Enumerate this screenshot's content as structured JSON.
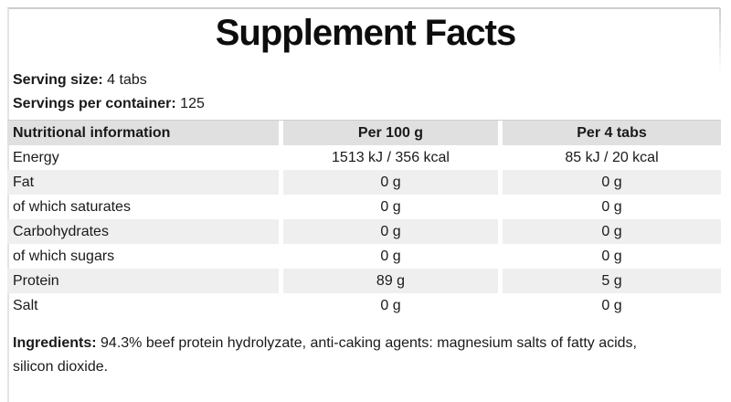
{
  "label": {
    "title": "Supplement Facts",
    "serving_size_label": "Serving size:",
    "serving_size_value": "4 tabs",
    "servings_per_container_label": "Servings per container:",
    "servings_per_container_value": "125"
  },
  "table": {
    "headers": [
      "Nutritional information",
      "Per 100 g",
      "Per 4 tabs"
    ],
    "rows": [
      {
        "name": "Energy",
        "per_100g": "1513 kJ / 356 kcal",
        "per_4tabs": "85 kJ / 20 kcal"
      },
      {
        "name": "Fat",
        "per_100g": "0 g",
        "per_4tabs": "0 g"
      },
      {
        "name": "of which saturates",
        "per_100g": "0 g",
        "per_4tabs": "0 g"
      },
      {
        "name": "Carbohydrates",
        "per_100g": "0 g",
        "per_4tabs": "0 g"
      },
      {
        "name": "of which sugars",
        "per_100g": "0 g",
        "per_4tabs": "0 g"
      },
      {
        "name": "Protein",
        "per_100g": "89 g",
        "per_4tabs": "5 g"
      },
      {
        "name": "Salt",
        "per_100g": "0 g",
        "per_4tabs": "0 g"
      }
    ]
  },
  "ingredients": {
    "label": "Ingredients:",
    "line1": "94.3% beef protein hydrolyzate, anti-caking agents: magnesium salts of fatty acids,",
    "line2": "silicon dioxide."
  },
  "colors": {
    "text": "#1a1a1a",
    "header_bg": "#e0e0e0",
    "row_alt_bg": "#efefef",
    "frame_border": "#cdcdcd"
  }
}
